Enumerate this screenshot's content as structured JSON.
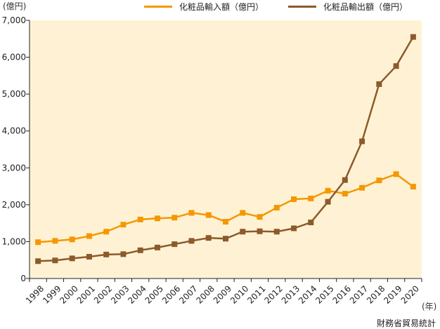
{
  "chart_data": {
    "type": "line",
    "x": [
      "1998",
      "1999",
      "2000",
      "2001",
      "2002",
      "2003",
      "2004",
      "2005",
      "2006",
      "2007",
      "2008",
      "2009",
      "2010",
      "2011",
      "2012",
      "2013",
      "2014",
      "2015",
      "2016",
      "2017",
      "2018",
      "2019",
      "2020"
    ],
    "series": [
      {
        "name": "化粧品輸入額（億円）",
        "color": "#f39800",
        "values": [
          985,
          1020,
          1060,
          1150,
          1270,
          1460,
          1600,
          1630,
          1650,
          1780,
          1720,
          1540,
          1780,
          1670,
          1920,
          2150,
          2170,
          2380,
          2300,
          2460,
          2660,
          2830,
          2490
        ]
      },
      {
        "name": "化粧品輸出額（億円）",
        "color": "#8c5a2b",
        "values": [
          470,
          490,
          545,
          590,
          650,
          660,
          765,
          840,
          930,
          1020,
          1100,
          1080,
          1270,
          1280,
          1270,
          1360,
          1520,
          2080,
          2670,
          3720,
          5270,
          5760,
          6550
        ]
      }
    ],
    "yticks": [
      "0",
      "1,000",
      "2,000",
      "3,000",
      "4,000",
      "5,000",
      "6,000",
      "7,000"
    ],
    "ylim": [
      0,
      7000
    ],
    "ylabel": "(億円)",
    "xlabel": "(年)",
    "source": "財務省貿易統計",
    "plot_background": "#fff2d4",
    "grid": false,
    "legend_position": "top"
  }
}
